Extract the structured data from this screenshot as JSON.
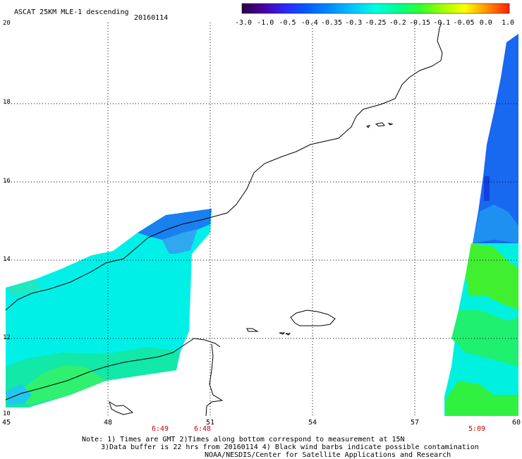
{
  "header": {
    "product": "ASCAT 25KM MLE-1 descending",
    "date": "20160114"
  },
  "colorbar": {
    "labels": [
      "-3.0",
      "-1.0",
      "-0.5",
      "-0.4",
      "-0.35",
      "-0.3",
      "-0.25",
      "-0.2",
      "-0.15",
      "-0.1",
      "-0.05",
      "0.0",
      "1.0"
    ],
    "colors": [
      "#2a0040",
      "#4a00a8",
      "#2a2aff",
      "#0060ff",
      "#0090ff",
      "#00c8ff",
      "#00ffe0",
      "#00ff90",
      "#30ff30",
      "#a0ff00",
      "#ffff00",
      "#ff9000",
      "#ff2000"
    ]
  },
  "axes": {
    "lon_ticks": [
      "45",
      "48",
      "51",
      "54",
      "57",
      "60"
    ],
    "lat_ticks": [
      "20",
      "18",
      "16",
      "14",
      "12",
      "10"
    ]
  },
  "pass_times": [
    {
      "label": "6:49",
      "lon": 49.5
    },
    {
      "label": "6:48",
      "lon": 50.8
    },
    {
      "label": "5:09",
      "lon": 58.8
    }
  ],
  "footer": {
    "line1": "Note: 1) Times are GMT 2)Times along bottom correspond to measurement at 15N",
    "line2": "3)Data buffer is 22 hrs from 20160114 4) Black wind barbs indicate possible contamination",
    "line3": "NOAA/NESDIS/Center for Satellite Applications and Research"
  },
  "styles": {
    "swath_blue": "#1060f0",
    "swath_cyan": "#00f0e8",
    "swath_green": "#20f040",
    "swath_mid": "#10e8a0"
  }
}
